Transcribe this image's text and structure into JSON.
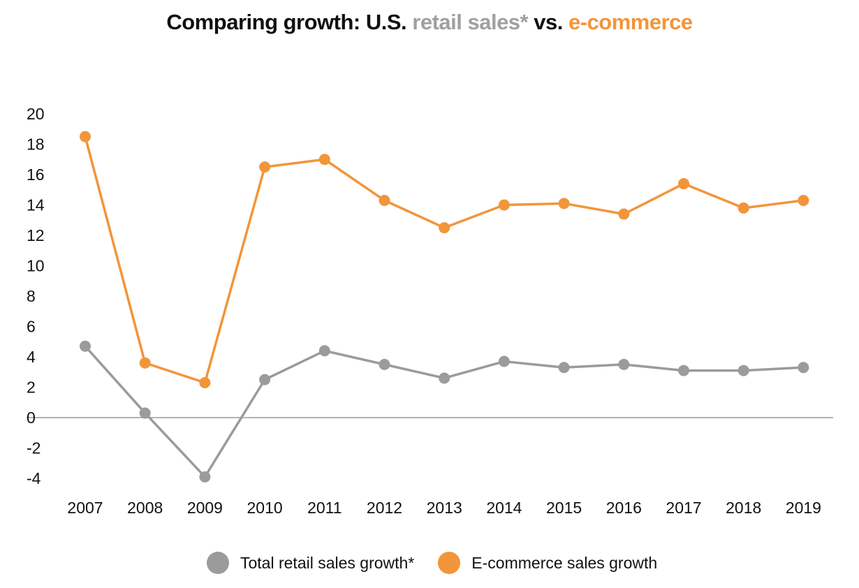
{
  "title": {
    "prefix": "Comparing growth: U.S. ",
    "retail": "retail sales*",
    "middle": " vs. ",
    "ecommerce": "e-commerce"
  },
  "legend": {
    "retail_label": "Total retail sales growth*",
    "ecommerce_label": "E-commerce sales growth"
  },
  "colors": {
    "retail": "#9b9b9b",
    "ecommerce": "#f2953a",
    "zero_line": "#9a9a9a"
  },
  "chart_data": {
    "type": "line",
    "categories": [
      "2007",
      "2008",
      "2009",
      "2010",
      "2011",
      "2012",
      "2013",
      "2014",
      "2015",
      "2016",
      "2017",
      "2018",
      "2019"
    ],
    "series": [
      {
        "name": "Total retail sales growth*",
        "values": [
          4.7,
          0.3,
          -3.9,
          2.5,
          4.4,
          3.5,
          2.6,
          3.7,
          3.3,
          3.5,
          3.1,
          3.1,
          3.3
        ]
      },
      {
        "name": "E-commerce sales growth",
        "values": [
          18.5,
          3.6,
          2.3,
          16.5,
          17.0,
          14.3,
          12.5,
          14.0,
          14.1,
          13.4,
          15.4,
          13.8,
          14.3
        ]
      }
    ],
    "ylim": [
      -4,
      20
    ],
    "yticks": [
      "20",
      "18",
      "16",
      "14",
      "12",
      "10",
      "8",
      "6",
      "4",
      "2",
      "0",
      "-2",
      "-4"
    ],
    "grid": false,
    "zero_line": true,
    "legend_position": "bottom"
  }
}
